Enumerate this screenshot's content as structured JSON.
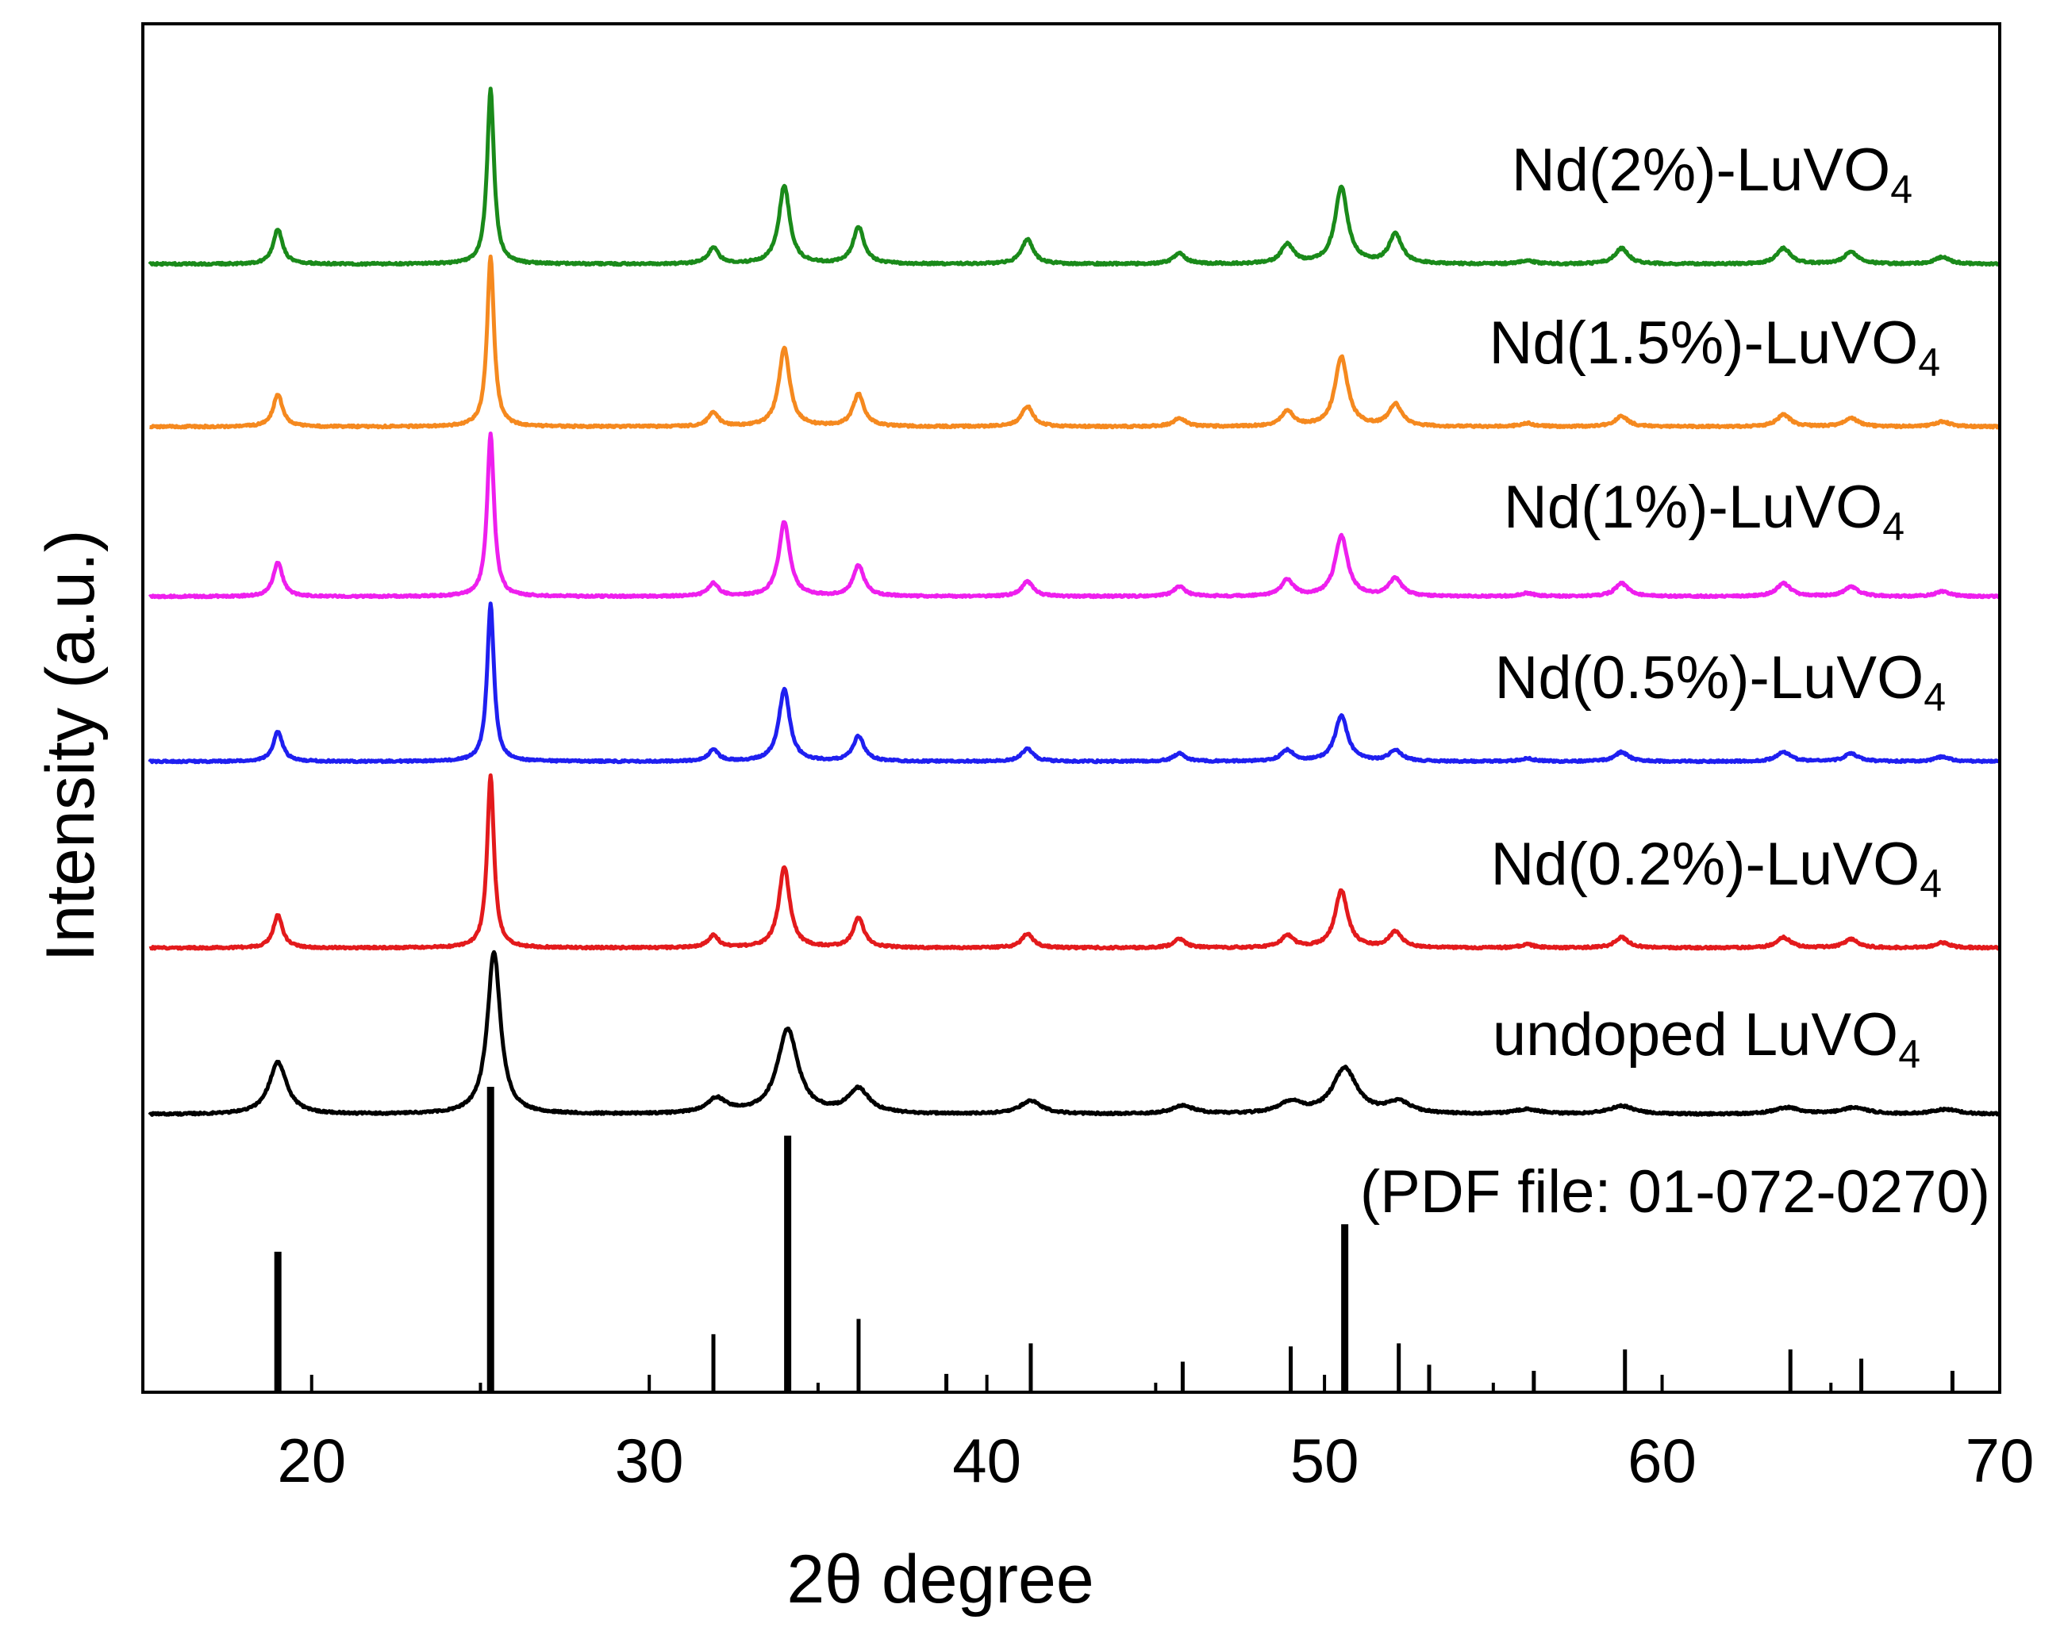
{
  "chart_data": {
    "type": "line",
    "title": "",
    "xlabel": "2θ degree",
    "ylabel": "Intensity (a.u.)",
    "xlim": [
      15,
      70
    ],
    "xticks": [
      20,
      30,
      40,
      50,
      60,
      70
    ],
    "grid": false,
    "legend": "inline labels at right of each trace",
    "reference": {
      "name": "PDF file: 01-072-0270",
      "label": "(PDF file: 01-072-0270)",
      "sticks": [
        {
          "x": 19.0,
          "h": 0.46
        },
        {
          "x": 25.3,
          "h": 1.0
        },
        {
          "x": 31.9,
          "h": 0.19
        },
        {
          "x": 34.1,
          "h": 0.84
        },
        {
          "x": 36.2,
          "h": 0.24
        },
        {
          "x": 38.8,
          "h": 0.06
        },
        {
          "x": 41.3,
          "h": 0.16
        },
        {
          "x": 45.8,
          "h": 0.1
        },
        {
          "x": 49.0,
          "h": 0.15
        },
        {
          "x": 50.6,
          "h": 0.55
        },
        {
          "x": 52.2,
          "h": 0.16
        },
        {
          "x": 53.1,
          "h": 0.09
        },
        {
          "x": 56.2,
          "h": 0.07
        },
        {
          "x": 58.9,
          "h": 0.14
        },
        {
          "x": 63.8,
          "h": 0.14
        },
        {
          "x": 65.9,
          "h": 0.11
        },
        {
          "x": 68.6,
          "h": 0.07
        }
      ]
    },
    "series": [
      {
        "name": "undoped LuVO4",
        "label_main": "undoped LuVO",
        "label_sub": "4",
        "color": "#000000",
        "width_scale": 1.9,
        "height": 1.0,
        "peaks": [
          {
            "x": 19.0,
            "h": 0.32
          },
          {
            "x": 25.4,
            "h": 1.0
          },
          {
            "x": 32.0,
            "h": 0.09
          },
          {
            "x": 34.1,
            "h": 0.52
          },
          {
            "x": 36.2,
            "h": 0.15
          },
          {
            "x": 41.3,
            "h": 0.08
          },
          {
            "x": 45.8,
            "h": 0.05
          },
          {
            "x": 49.0,
            "h": 0.07
          },
          {
            "x": 50.6,
            "h": 0.28
          },
          {
            "x": 52.2,
            "h": 0.07
          },
          {
            "x": 56.0,
            "h": 0.03
          },
          {
            "x": 58.8,
            "h": 0.05
          },
          {
            "x": 63.7,
            "h": 0.04
          },
          {
            "x": 65.7,
            "h": 0.04
          },
          {
            "x": 68.4,
            "h": 0.03
          }
        ]
      },
      {
        "name": "Nd(0.2%)-LuVO4",
        "label_main": "Nd(0.2%)-LuVO",
        "label_sub": "4",
        "color": "#e31a1c",
        "width_scale": 1.0,
        "height": 1.0,
        "peaks": [
          {
            "x": 19.0,
            "h": 0.19
          },
          {
            "x": 25.3,
            "h": 1.0
          },
          {
            "x": 31.9,
            "h": 0.07
          },
          {
            "x": 34.0,
            "h": 0.47
          },
          {
            "x": 36.2,
            "h": 0.17
          },
          {
            "x": 41.2,
            "h": 0.08
          },
          {
            "x": 45.7,
            "h": 0.05
          },
          {
            "x": 48.9,
            "h": 0.07
          },
          {
            "x": 50.5,
            "h": 0.33
          },
          {
            "x": 52.1,
            "h": 0.09
          },
          {
            "x": 56.0,
            "h": 0.02
          },
          {
            "x": 58.8,
            "h": 0.06
          },
          {
            "x": 63.6,
            "h": 0.06
          },
          {
            "x": 65.6,
            "h": 0.05
          },
          {
            "x": 68.3,
            "h": 0.03
          }
        ]
      },
      {
        "name": "Nd(0.5%)-LuVO4",
        "label_main": "Nd(0.5%)-LuVO",
        "label_sub": "4",
        "color": "#1f1ff0",
        "width_scale": 1.0,
        "height": 1.0,
        "peaks": [
          {
            "x": 19.0,
            "h": 0.19
          },
          {
            "x": 25.3,
            "h": 1.0
          },
          {
            "x": 31.9,
            "h": 0.07
          },
          {
            "x": 34.0,
            "h": 0.46
          },
          {
            "x": 36.2,
            "h": 0.16
          },
          {
            "x": 41.2,
            "h": 0.08
          },
          {
            "x": 45.7,
            "h": 0.05
          },
          {
            "x": 48.9,
            "h": 0.07
          },
          {
            "x": 50.5,
            "h": 0.29
          },
          {
            "x": 52.1,
            "h": 0.07
          },
          {
            "x": 56.0,
            "h": 0.02
          },
          {
            "x": 58.8,
            "h": 0.06
          },
          {
            "x": 63.6,
            "h": 0.06
          },
          {
            "x": 65.6,
            "h": 0.05
          },
          {
            "x": 68.3,
            "h": 0.03
          }
        ]
      },
      {
        "name": "Nd(1%)-LuVO4",
        "label_main": "Nd(1%)-LuVO",
        "label_sub": "4",
        "color": "#ee1fee",
        "width_scale": 1.0,
        "height": 1.0,
        "peaks": [
          {
            "x": 19.0,
            "h": 0.21
          },
          {
            "x": 25.3,
            "h": 1.0
          },
          {
            "x": 31.9,
            "h": 0.08
          },
          {
            "x": 34.0,
            "h": 0.46
          },
          {
            "x": 36.2,
            "h": 0.19
          },
          {
            "x": 41.2,
            "h": 0.09
          },
          {
            "x": 45.7,
            "h": 0.06
          },
          {
            "x": 48.9,
            "h": 0.1
          },
          {
            "x": 50.5,
            "h": 0.37
          },
          {
            "x": 52.1,
            "h": 0.11
          },
          {
            "x": 56.0,
            "h": 0.02
          },
          {
            "x": 58.8,
            "h": 0.08
          },
          {
            "x": 63.6,
            "h": 0.08
          },
          {
            "x": 65.6,
            "h": 0.06
          },
          {
            "x": 68.3,
            "h": 0.03
          }
        ]
      },
      {
        "name": "Nd(1.5%)-LuVO4",
        "label_main": "Nd(1.5%)-LuVO",
        "label_sub": "4",
        "color": "#f5891f",
        "width_scale": 1.0,
        "height": 1.0,
        "peaks": [
          {
            "x": 19.0,
            "h": 0.19
          },
          {
            "x": 25.3,
            "h": 1.0
          },
          {
            "x": 31.9,
            "h": 0.08
          },
          {
            "x": 34.0,
            "h": 0.46
          },
          {
            "x": 36.2,
            "h": 0.19
          },
          {
            "x": 41.2,
            "h": 0.12
          },
          {
            "x": 45.7,
            "h": 0.05
          },
          {
            "x": 48.9,
            "h": 0.09
          },
          {
            "x": 50.5,
            "h": 0.41
          },
          {
            "x": 52.1,
            "h": 0.13
          },
          {
            "x": 56.0,
            "h": 0.02
          },
          {
            "x": 58.8,
            "h": 0.06
          },
          {
            "x": 63.6,
            "h": 0.07
          },
          {
            "x": 65.6,
            "h": 0.05
          },
          {
            "x": 68.3,
            "h": 0.03
          }
        ]
      },
      {
        "name": "Nd(2%)-LuVO4",
        "label_main": "Nd(2%)-LuVO",
        "label_sub": "4",
        "color": "#1a8a1a",
        "width_scale": 1.0,
        "height": 1.0,
        "peaks": [
          {
            "x": 19.0,
            "h": 0.2
          },
          {
            "x": 25.3,
            "h": 1.0
          },
          {
            "x": 31.9,
            "h": 0.09
          },
          {
            "x": 34.0,
            "h": 0.45
          },
          {
            "x": 36.2,
            "h": 0.21
          },
          {
            "x": 41.2,
            "h": 0.14
          },
          {
            "x": 45.7,
            "h": 0.06
          },
          {
            "x": 48.9,
            "h": 0.11
          },
          {
            "x": 50.5,
            "h": 0.44
          },
          {
            "x": 52.1,
            "h": 0.17
          },
          {
            "x": 56.0,
            "h": 0.02
          },
          {
            "x": 58.8,
            "h": 0.09
          },
          {
            "x": 63.6,
            "h": 0.09
          },
          {
            "x": 65.6,
            "h": 0.07
          },
          {
            "x": 68.3,
            "h": 0.04
          }
        ]
      }
    ]
  }
}
